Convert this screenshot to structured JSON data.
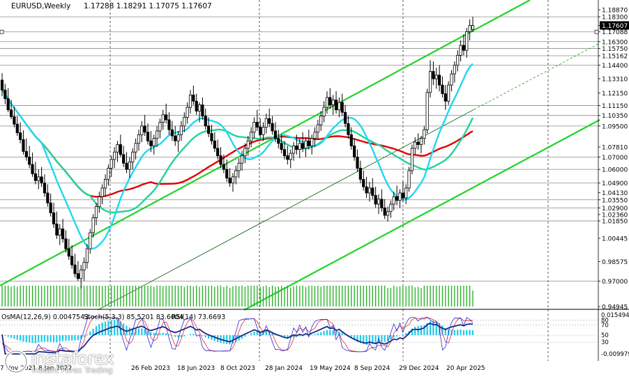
{
  "header": {
    "symbol": "EURUSD,Weekly",
    "ohlc": "1.17288 1.18291 1.17075 1.17607"
  },
  "indicator_header": {
    "osma": "OsMA(12,26,9) 0.0047543",
    "stoch": "Stoch(5,3,3) 85.5201 83.6004",
    "rsi": "RSI(14) 73.6693"
  },
  "logo": {
    "name": "instaforex",
    "tagline": "Instant Forex Trading"
  },
  "colors": {
    "background": "#ffffff",
    "candle": "#000000",
    "ma_red": "#e00000",
    "ma_teal": "#22d39a",
    "ma_cyan": "#20d8f0",
    "channel": "#22d22a",
    "level_line": "#8c8c8c",
    "volume": "#1fae1f",
    "osma_bars": "#20c8e8",
    "stoch_main": "#2a2ad8",
    "stoch_signal": "#e03030",
    "rsi_line": "#1a2a8a"
  },
  "chart_data": {
    "type": "candlestick",
    "symbol": "EURUSD",
    "timeframe": "Weekly",
    "ylim": [
      0.94945,
      1.1887
    ],
    "price_ticks": [
      "1.18870",
      "1.18300",
      "1.17607",
      "1.17088",
      "1.16300",
      "1.15750",
      "1.15162",
      "1.14400",
      "1.13310",
      "1.12150",
      "1.11150",
      "1.10350",
      "1.09500",
      "1.07810",
      "1.07000",
      "1.06000",
      "1.04900",
      "1.04130",
      "1.03550",
      "1.02900",
      "1.02360",
      "1.01850",
      "1.00445",
      "0.98575",
      "0.97000",
      "0.94945"
    ],
    "level_lines": [
      1.183,
      1.17088,
      1.163,
      1.1575,
      1.15162,
      1.144,
      1.1115,
      1.1035,
      1.095,
      1.07,
      1.06,
      1.049,
      1.0355,
      1.029,
      1.0185,
      0.97
    ],
    "current_price": 1.17607,
    "x_labels": [
      "7 Nov 2021",
      "8 Jan 2022",
      "26 Feb 2023",
      "18 Jun 2023",
      "8 Oct 2023",
      "28 Jan 2024",
      "19 May 2024",
      "8 Sep 2024",
      "29 Dec 2024",
      "20 Apr 2025"
    ],
    "candles": [
      {
        "o": 1.132,
        "h": 1.1375,
        "l": 1.119,
        "c": 1.124
      },
      {
        "o": 1.124,
        "h": 1.129,
        "l": 1.1125,
        "c": 1.117
      },
      {
        "o": 1.117,
        "h": 1.1255,
        "l": 1.106,
        "c": 1.108
      },
      {
        "o": 1.108,
        "h": 1.116,
        "l": 1.1005,
        "c": 1.1025
      },
      {
        "o": 1.1025,
        "h": 1.1105,
        "l": 1.094,
        "c": 1.0965
      },
      {
        "o": 1.0965,
        "h": 1.103,
        "l": 1.087,
        "c": 1.0895
      },
      {
        "o": 1.0895,
        "h": 1.098,
        "l": 1.081,
        "c": 1.084
      },
      {
        "o": 1.084,
        "h": 1.0915,
        "l": 1.072,
        "c": 1.0745
      },
      {
        "o": 1.0745,
        "h": 1.085,
        "l": 1.067,
        "c": 1.07
      },
      {
        "o": 1.07,
        "h": 1.079,
        "l": 1.061,
        "c": 1.064
      },
      {
        "o": 1.064,
        "h": 1.0735,
        "l": 1.054,
        "c": 1.0565
      },
      {
        "o": 1.0565,
        "h": 1.066,
        "l": 1.048,
        "c": 1.051
      },
      {
        "o": 1.051,
        "h": 1.06,
        "l": 1.044,
        "c": 1.054
      },
      {
        "o": 1.054,
        "h": 1.062,
        "l": 1.046,
        "c": 1.049
      },
      {
        "o": 1.049,
        "h": 1.056,
        "l": 1.038,
        "c": 1.041
      },
      {
        "o": 1.041,
        "h": 1.048,
        "l": 1.03,
        "c": 1.033
      },
      {
        "o": 1.033,
        "h": 1.0405,
        "l": 1.022,
        "c": 1.025
      },
      {
        "o": 1.025,
        "h": 1.033,
        "l": 1.013,
        "c": 1.016
      },
      {
        "o": 1.016,
        "h": 1.026,
        "l": 1.004,
        "c": 1.007
      },
      {
        "o": 1.007,
        "h": 1.016,
        "l": 0.999,
        "c": 1.012
      },
      {
        "o": 1.012,
        "h": 1.02,
        "l": 1.001,
        "c": 1.004
      },
      {
        "o": 1.004,
        "h": 1.011,
        "l": 0.993,
        "c": 0.996
      },
      {
        "o": 0.996,
        "h": 1.004,
        "l": 0.987,
        "c": 0.99
      },
      {
        "o": 0.99,
        "h": 0.999,
        "l": 0.98,
        "c": 0.983
      },
      {
        "o": 0.983,
        "h": 0.992,
        "l": 0.973,
        "c": 0.976
      },
      {
        "o": 0.976,
        "h": 0.986,
        "l": 0.97,
        "c": 0.972
      },
      {
        "o": 0.972,
        "h": 0.983,
        "l": 0.964,
        "c": 0.979
      },
      {
        "o": 0.979,
        "h": 0.989,
        "l": 0.97,
        "c": 0.985
      },
      {
        "o": 0.985,
        "h": 1.0,
        "l": 0.98,
        "c": 0.996
      },
      {
        "o": 0.996,
        "h": 1.012,
        "l": 0.992,
        "c": 1.009
      },
      {
        "o": 1.009,
        "h": 1.024,
        "l": 1.005,
        "c": 1.021
      },
      {
        "o": 1.021,
        "h": 1.033,
        "l": 1.015,
        "c": 1.03
      },
      {
        "o": 1.03,
        "h": 1.042,
        "l": 1.025,
        "c": 1.038
      },
      {
        "o": 1.038,
        "h": 1.048,
        "l": 1.032,
        "c": 1.045
      },
      {
        "o": 1.045,
        "h": 1.056,
        "l": 1.039,
        "c": 1.052
      },
      {
        "o": 1.052,
        "h": 1.064,
        "l": 1.047,
        "c": 1.061
      },
      {
        "o": 1.061,
        "h": 1.071,
        "l": 1.054,
        "c": 1.068
      },
      {
        "o": 1.068,
        "h": 1.078,
        "l": 1.061,
        "c": 1.074
      },
      {
        "o": 1.074,
        "h": 1.083,
        "l": 1.066,
        "c": 1.08
      },
      {
        "o": 1.08,
        "h": 1.088,
        "l": 1.07,
        "c": 1.072
      },
      {
        "o": 1.072,
        "h": 1.079,
        "l": 1.062,
        "c": 1.065
      },
      {
        "o": 1.065,
        "h": 1.074,
        "l": 1.057,
        "c": 1.06
      },
      {
        "o": 1.06,
        "h": 1.07,
        "l": 1.053,
        "c": 1.066
      },
      {
        "o": 1.066,
        "h": 1.077,
        "l": 1.06,
        "c": 1.074
      },
      {
        "o": 1.074,
        "h": 1.085,
        "l": 1.068,
        "c": 1.081
      },
      {
        "o": 1.081,
        "h": 1.092,
        "l": 1.075,
        "c": 1.088
      },
      {
        "o": 1.088,
        "h": 1.099,
        "l": 1.082,
        "c": 1.095
      },
      {
        "o": 1.095,
        "h": 1.104,
        "l": 1.087,
        "c": 1.09
      },
      {
        "o": 1.09,
        "h": 1.097,
        "l": 1.08,
        "c": 1.083
      },
      {
        "o": 1.083,
        "h": 1.091,
        "l": 1.074,
        "c": 1.079
      },
      {
        "o": 1.079,
        "h": 1.088,
        "l": 1.072,
        "c": 1.085
      },
      {
        "o": 1.085,
        "h": 1.095,
        "l": 1.078,
        "c": 1.091
      },
      {
        "o": 1.091,
        "h": 1.101,
        "l": 1.085,
        "c": 1.098
      },
      {
        "o": 1.098,
        "h": 1.108,
        "l": 1.092,
        "c": 1.104
      },
      {
        "o": 1.104,
        "h": 1.113,
        "l": 1.097,
        "c": 1.1
      },
      {
        "o": 1.1,
        "h": 1.106,
        "l": 1.088,
        "c": 1.092
      },
      {
        "o": 1.092,
        "h": 1.099,
        "l": 1.083,
        "c": 1.087
      },
      {
        "o": 1.087,
        "h": 1.095,
        "l": 1.079,
        "c": 1.083
      },
      {
        "o": 1.083,
        "h": 1.091,
        "l": 1.074,
        "c": 1.088
      },
      {
        "o": 1.088,
        "h": 1.099,
        "l": 1.083,
        "c": 1.095
      },
      {
        "o": 1.095,
        "h": 1.106,
        "l": 1.09,
        "c": 1.102
      },
      {
        "o": 1.102,
        "h": 1.114,
        "l": 1.097,
        "c": 1.11
      },
      {
        "o": 1.11,
        "h": 1.124,
        "l": 1.105,
        "c": 1.12
      },
      {
        "o": 1.12,
        "h": 1.1275,
        "l": 1.112,
        "c": 1.115
      },
      {
        "o": 1.115,
        "h": 1.121,
        "l": 1.104,
        "c": 1.107
      },
      {
        "o": 1.107,
        "h": 1.114,
        "l": 1.098,
        "c": 1.112
      },
      {
        "o": 1.112,
        "h": 1.118,
        "l": 1.1,
        "c": 1.103
      },
      {
        "o": 1.103,
        "h": 1.109,
        "l": 1.092,
        "c": 1.095
      },
      {
        "o": 1.095,
        "h": 1.102,
        "l": 1.086,
        "c": 1.089
      },
      {
        "o": 1.089,
        "h": 1.096,
        "l": 1.08,
        "c": 1.083
      },
      {
        "o": 1.083,
        "h": 1.09,
        "l": 1.074,
        "c": 1.077
      },
      {
        "o": 1.077,
        "h": 1.084,
        "l": 1.068,
        "c": 1.071
      },
      {
        "o": 1.071,
        "h": 1.078,
        "l": 1.061,
        "c": 1.064
      },
      {
        "o": 1.064,
        "h": 1.072,
        "l": 1.057,
        "c": 1.06
      },
      {
        "o": 1.06,
        "h": 1.068,
        "l": 1.05,
        "c": 1.053
      },
      {
        "o": 1.053,
        "h": 1.061,
        "l": 1.046,
        "c": 1.049
      },
      {
        "o": 1.049,
        "h": 1.057,
        "l": 1.042,
        "c": 1.054
      },
      {
        "o": 1.054,
        "h": 1.063,
        "l": 1.048,
        "c": 1.059
      },
      {
        "o": 1.059,
        "h": 1.069,
        "l": 1.053,
        "c": 1.065
      },
      {
        "o": 1.065,
        "h": 1.075,
        "l": 1.059,
        "c": 1.071
      },
      {
        "o": 1.071,
        "h": 1.081,
        "l": 1.065,
        "c": 1.077
      },
      {
        "o": 1.077,
        "h": 1.087,
        "l": 1.071,
        "c": 1.083
      },
      {
        "o": 1.083,
        "h": 1.094,
        "l": 1.078,
        "c": 1.09
      },
      {
        "o": 1.09,
        "h": 1.102,
        "l": 1.085,
        "c": 1.098
      },
      {
        "o": 1.098,
        "h": 1.108,
        "l": 1.091,
        "c": 1.094
      },
      {
        "o": 1.094,
        "h": 1.101,
        "l": 1.085,
        "c": 1.088
      },
      {
        "o": 1.088,
        "h": 1.098,
        "l": 1.083,
        "c": 1.094
      },
      {
        "o": 1.094,
        "h": 1.105,
        "l": 1.089,
        "c": 1.101
      },
      {
        "o": 1.101,
        "h": 1.109,
        "l": 1.094,
        "c": 1.097
      },
      {
        "o": 1.097,
        "h": 1.103,
        "l": 1.088,
        "c": 1.091
      },
      {
        "o": 1.091,
        "h": 1.098,
        "l": 1.082,
        "c": 1.085
      },
      {
        "o": 1.085,
        "h": 1.092,
        "l": 1.077,
        "c": 1.081
      },
      {
        "o": 1.081,
        "h": 1.088,
        "l": 1.073,
        "c": 1.076
      },
      {
        "o": 1.076,
        "h": 1.083,
        "l": 1.068,
        "c": 1.071
      },
      {
        "o": 1.071,
        "h": 1.079,
        "l": 1.064,
        "c": 1.068
      },
      {
        "o": 1.068,
        "h": 1.076,
        "l": 1.061,
        "c": 1.073
      },
      {
        "o": 1.073,
        "h": 1.082,
        "l": 1.067,
        "c": 1.079
      },
      {
        "o": 1.079,
        "h": 1.088,
        "l": 1.072,
        "c": 1.076
      },
      {
        "o": 1.076,
        "h": 1.085,
        "l": 1.069,
        "c": 1.081
      },
      {
        "o": 1.081,
        "h": 1.09,
        "l": 1.074,
        "c": 1.077
      },
      {
        "o": 1.077,
        "h": 1.086,
        "l": 1.07,
        "c": 1.083
      },
      {
        "o": 1.083,
        "h": 1.092,
        "l": 1.076,
        "c": 1.079
      },
      {
        "o": 1.079,
        "h": 1.088,
        "l": 1.072,
        "c": 1.085
      },
      {
        "o": 1.085,
        "h": 1.094,
        "l": 1.078,
        "c": 1.09
      },
      {
        "o": 1.09,
        "h": 1.1,
        "l": 1.084,
        "c": 1.096
      },
      {
        "o": 1.096,
        "h": 1.107,
        "l": 1.091,
        "c": 1.103
      },
      {
        "o": 1.103,
        "h": 1.115,
        "l": 1.098,
        "c": 1.11
      },
      {
        "o": 1.11,
        "h": 1.123,
        "l": 1.105,
        "c": 1.118
      },
      {
        "o": 1.118,
        "h": 1.1255,
        "l": 1.109,
        "c": 1.112
      },
      {
        "o": 1.112,
        "h": 1.12,
        "l": 1.104,
        "c": 1.116
      },
      {
        "o": 1.116,
        "h": 1.123,
        "l": 1.105,
        "c": 1.108
      },
      {
        "o": 1.108,
        "h": 1.118,
        "l": 1.102,
        "c": 1.114
      },
      {
        "o": 1.114,
        "h": 1.121,
        "l": 1.103,
        "c": 1.106
      },
      {
        "o": 1.106,
        "h": 1.112,
        "l": 1.094,
        "c": 1.097
      },
      {
        "o": 1.097,
        "h": 1.103,
        "l": 1.085,
        "c": 1.088
      },
      {
        "o": 1.088,
        "h": 1.094,
        "l": 1.076,
        "c": 1.079
      },
      {
        "o": 1.079,
        "h": 1.085,
        "l": 1.067,
        "c": 1.07
      },
      {
        "o": 1.07,
        "h": 1.076,
        "l": 1.058,
        "c": 1.061
      },
      {
        "o": 1.061,
        "h": 1.067,
        "l": 1.049,
        "c": 1.052
      },
      {
        "o": 1.052,
        "h": 1.059,
        "l": 1.043,
        "c": 1.046
      },
      {
        "o": 1.046,
        "h": 1.054,
        "l": 1.037,
        "c": 1.041
      },
      {
        "o": 1.041,
        "h": 1.05,
        "l": 1.034,
        "c": 1.045
      },
      {
        "o": 1.045,
        "h": 1.053,
        "l": 1.036,
        "c": 1.039
      },
      {
        "o": 1.039,
        "h": 1.046,
        "l": 1.029,
        "c": 1.032
      },
      {
        "o": 1.032,
        "h": 1.04,
        "l": 1.024,
        "c": 1.036
      },
      {
        "o": 1.036,
        "h": 1.044,
        "l": 1.026,
        "c": 1.029
      },
      {
        "o": 1.029,
        "h": 1.036,
        "l": 1.02,
        "c": 1.023
      },
      {
        "o": 1.023,
        "h": 1.03,
        "l": 1.018,
        "c": 1.026
      },
      {
        "o": 1.026,
        "h": 1.035,
        "l": 1.021,
        "c": 1.032
      },
      {
        "o": 1.032,
        "h": 1.042,
        "l": 1.027,
        "c": 1.038
      },
      {
        "o": 1.038,
        "h": 1.047,
        "l": 1.031,
        "c": 1.035
      },
      {
        "o": 1.035,
        "h": 1.044,
        "l": 1.029,
        "c": 1.041
      },
      {
        "o": 1.041,
        "h": 1.05,
        "l": 1.034,
        "c": 1.037
      },
      {
        "o": 1.037,
        "h": 1.048,
        "l": 1.032,
        "c": 1.045
      },
      {
        "o": 1.045,
        "h": 1.062,
        "l": 1.042,
        "c": 1.059
      },
      {
        "o": 1.059,
        "h": 1.08,
        "l": 1.056,
        "c": 1.077
      },
      {
        "o": 1.077,
        "h": 1.086,
        "l": 1.072,
        "c": 1.082
      },
      {
        "o": 1.082,
        "h": 1.089,
        "l": 1.076,
        "c": 1.08
      },
      {
        "o": 1.08,
        "h": 1.087,
        "l": 1.073,
        "c": 1.085
      },
      {
        "o": 1.085,
        "h": 1.095,
        "l": 1.08,
        "c": 1.092
      },
      {
        "o": 1.092,
        "h": 1.125,
        "l": 1.089,
        "c": 1.122
      },
      {
        "o": 1.122,
        "h": 1.148,
        "l": 1.118,
        "c": 1.139
      },
      {
        "o": 1.139,
        "h": 1.147,
        "l": 1.128,
        "c": 1.133
      },
      {
        "o": 1.133,
        "h": 1.142,
        "l": 1.125,
        "c": 1.136
      },
      {
        "o": 1.136,
        "h": 1.144,
        "l": 1.123,
        "c": 1.128
      },
      {
        "o": 1.128,
        "h": 1.135,
        "l": 1.118,
        "c": 1.121
      },
      {
        "o": 1.121,
        "h": 1.128,
        "l": 1.108,
        "c": 1.115
      },
      {
        "o": 1.115,
        "h": 1.131,
        "l": 1.112,
        "c": 1.128
      },
      {
        "o": 1.128,
        "h": 1.14,
        "l": 1.123,
        "c": 1.137
      },
      {
        "o": 1.137,
        "h": 1.147,
        "l": 1.13,
        "c": 1.144
      },
      {
        "o": 1.144,
        "h": 1.156,
        "l": 1.139,
        "c": 1.152
      },
      {
        "o": 1.152,
        "h": 1.164,
        "l": 1.147,
        "c": 1.16
      },
      {
        "o": 1.16,
        "h": 1.169,
        "l": 1.152,
        "c": 1.156
      },
      {
        "o": 1.156,
        "h": 1.174,
        "l": 1.15,
        "c": 1.171
      },
      {
        "o": 1.171,
        "h": 1.181,
        "l": 1.164,
        "c": 1.176
      },
      {
        "o": 1.17288,
        "h": 1.18291,
        "l": 1.17075,
        "c": 1.17607
      }
    ]
  }
}
